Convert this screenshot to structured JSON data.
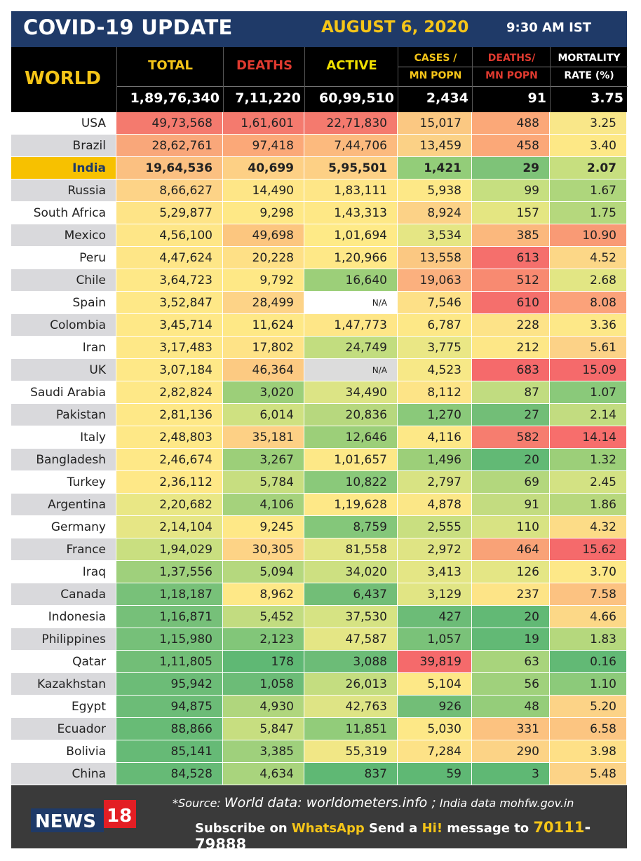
{
  "header": {
    "title": "COVID-19 UPDATE",
    "date": "AUGUST 6, 2020",
    "time": "9:30 AM IST"
  },
  "world": {
    "label": "WORLD",
    "columns": [
      {
        "line1": "TOTAL",
        "line2": "",
        "value": "1,89,76,340",
        "color": "#f5c518"
      },
      {
        "line1": "DEATHS",
        "line2": "",
        "value": "7,11,220",
        "color": "#e03a2f"
      },
      {
        "line1": "ACTIVE",
        "line2": "",
        "value": "60,99,510",
        "color": "#f0e000"
      },
      {
        "line1": "CASES /",
        "line2": "MN POPN",
        "value": "2,434",
        "color": "#f5c518"
      },
      {
        "line1": "DEATHS/",
        "line2": "MN POPN",
        "value": "91",
        "color": "#e03a2f"
      },
      {
        "line1": "MORTALITY",
        "line2": "RATE (%)",
        "value": "3.75",
        "color": "#ffffff"
      }
    ]
  },
  "rows": [
    {
      "country": "USA",
      "total": "49,73,568",
      "deaths": "1,61,601",
      "active": "22,71,830",
      "cpm": "15,017",
      "dpm": "488",
      "rate": "3.25",
      "colors": [
        "#f47a6e",
        "#f47a6e",
        "#f47a6e",
        "#fbc882",
        "#fba878",
        "#f9e789"
      ]
    },
    {
      "country": "Brazil",
      "total": "28,62,761",
      "deaths": "97,418",
      "active": "7,44,706",
      "cpm": "13,459",
      "dpm": "458",
      "rate": "3.40",
      "colors": [
        "#f9a77a",
        "#fba878",
        "#fcba7e",
        "#fbd186",
        "#fba878",
        "#fde886"
      ]
    },
    {
      "country": "India",
      "total": "19,64,536",
      "deaths": "40,699",
      "active": "5,95,501",
      "cpm": "1,421",
      "dpm": "29",
      "rate": "2.07",
      "highlight": true,
      "colors": [
        "#fbc081",
        "#fdd085",
        "#fdd085",
        "#93cd79",
        "#7ec378",
        "#c7df7f"
      ]
    },
    {
      "country": "Russia",
      "total": "8,66,627",
      "deaths": "14,490",
      "active": "1,83,111",
      "cpm": "5,938",
      "dpm": "99",
      "rate": "1.67",
      "colors": [
        "#fdd387",
        "#fee687",
        "#fee687",
        "#fde887",
        "#c6df80",
        "#aed67c"
      ]
    },
    {
      "country": "South Africa",
      "total": "5,29,877",
      "deaths": "9,298",
      "active": "1,43,313",
      "cpm": "8,924",
      "dpm": "157",
      "rate": "1.75",
      "colors": [
        "#fee487",
        "#fee886",
        "#fee886",
        "#fcd287",
        "#e4e682",
        "#b5d87d"
      ]
    },
    {
      "country": "Mexico",
      "total": "4,56,100",
      "deaths": "49,698",
      "active": "1,01,694",
      "cpm": "3,534",
      "dpm": "385",
      "rate": "10.90",
      "colors": [
        "#fee687",
        "#fcc67f",
        "#feea87",
        "#e5e684",
        "#fbb87d",
        "#f99a75"
      ]
    },
    {
      "country": "Peru",
      "total": "4,47,624",
      "deaths": "20,228",
      "active": "1,20,966",
      "cpm": "13,558",
      "dpm": "613",
      "rate": "4.52",
      "colors": [
        "#fee687",
        "#fee086",
        "#fee887",
        "#fbc882",
        "#f56f6c",
        "#fcd787"
      ]
    },
    {
      "country": "Chile",
      "total": "3,64,723",
      "deaths": "9,792",
      "active": "16,640",
      "cpm": "19,063",
      "dpm": "512",
      "rate": "2.68",
      "colors": [
        "#fee887",
        "#fee886",
        "#9ccf79",
        "#fbb07e",
        "#f88a71",
        "#e2e684"
      ]
    },
    {
      "country": "Spain",
      "total": "3,52,847",
      "deaths": "28,499",
      "active": "N/A",
      "cpm": "7,546",
      "dpm": "610",
      "rate": "8.08",
      "colors": [
        "#fee887",
        "#fdd387",
        "#ffffff",
        "#fde087",
        "#f56f6c",
        "#fba27a"
      ]
    },
    {
      "country": "Colombia",
      "total": "3,45,714",
      "deaths": "11,624",
      "active": "1,47,773",
      "cpm": "6,787",
      "dpm": "228",
      "rate": "3.36",
      "colors": [
        "#fee887",
        "#fee886",
        "#fee687",
        "#fde887",
        "#fde388",
        "#fde888"
      ]
    },
    {
      "country": "Iran",
      "total": "3,17,483",
      "deaths": "17,802",
      "active": "24,749",
      "cpm": "3,775",
      "dpm": "212",
      "rate": "5.61",
      "colors": [
        "#fee887",
        "#fee387",
        "#c2dd7f",
        "#eae785",
        "#fde787",
        "#fcd287"
      ]
    },
    {
      "country": "UK",
      "total": "3,07,184",
      "deaths": "46,364",
      "active": "N/A",
      "cpm": "4,523",
      "dpm": "683",
      "rate": "15.09",
      "colors": [
        "#fee887",
        "#fcca82",
        "#dcdcdc",
        "#f7e887",
        "#f56a6b",
        "#f56a6b"
      ]
    },
    {
      "country": "Saudi Arabia",
      "total": "2,82,824",
      "deaths": "3,020",
      "active": "34,490",
      "cpm": "8,112",
      "dpm": "87",
      "rate": "1.07",
      "colors": [
        "#fee887",
        "#9ccf79",
        "#dce485",
        "#fde487",
        "#c1dc80",
        "#8ac97a"
      ]
    },
    {
      "country": "Pakistan",
      "total": "2,81,136",
      "deaths": "6,014",
      "active": "20,836",
      "cpm": "1,270",
      "dpm": "27",
      "rate": "2.14",
      "colors": [
        "#fee887",
        "#cfe181",
        "#b7d87e",
        "#8ac97a",
        "#72be77",
        "#c2dc80"
      ]
    },
    {
      "country": "Italy",
      "total": "2,48,803",
      "deaths": "35,181",
      "active": "12,646",
      "cpm": "4,116",
      "dpm": "582",
      "rate": "14.14",
      "colors": [
        "#fee887",
        "#fdd085",
        "#9ccf79",
        "#fde887",
        "#f67d6f",
        "#f76e6c"
      ]
    },
    {
      "country": "Bangladesh",
      "total": "2,46,674",
      "deaths": "3,267",
      "active": "1,01,657",
      "cpm": "1,496",
      "dpm": "20",
      "rate": "1.32",
      "colors": [
        "#fee887",
        "#9ccf79",
        "#fde887",
        "#9ccf79",
        "#62b975",
        "#9ccf79"
      ]
    },
    {
      "country": "Turkey",
      "total": "2,36,112",
      "deaths": "5,784",
      "active": "10,822",
      "cpm": "2,797",
      "dpm": "69",
      "rate": "2.45",
      "colors": [
        "#fee887",
        "#c7de80",
        "#8ac97a",
        "#d8e383",
        "#b3d77d",
        "#d3e283"
      ]
    },
    {
      "country": "Argentina",
      "total": "2,20,682",
      "deaths": "4,106",
      "active": "1,19,628",
      "cpm": "4,878",
      "dpm": "91",
      "rate": "1.86",
      "colors": [
        "#e9e785",
        "#a5d27c",
        "#fee887",
        "#fbe787",
        "#c3dc80",
        "#b7d87d"
      ]
    },
    {
      "country": "Germany",
      "total": "2,14,104",
      "deaths": "9,245",
      "active": "8,759",
      "cpm": "2,555",
      "dpm": "110",
      "rate": "4.32",
      "colors": [
        "#e6e685",
        "#fee887",
        "#84c77a",
        "#c9df80",
        "#d8e383",
        "#fcdc87"
      ]
    },
    {
      "country": "France",
      "total": "1,94,029",
      "deaths": "30,305",
      "active": "81,558",
      "cpm": "2,972",
      "dpm": "464",
      "rate": "15.62",
      "colors": [
        "#c9df80",
        "#fdd386",
        "#e2e585",
        "#dfe484",
        "#f9a277",
        "#f56a6b"
      ]
    },
    {
      "country": "Iraq",
      "total": "1,37,556",
      "deaths": "5,094",
      "active": "34,020",
      "cpm": "3,413",
      "dpm": "126",
      "rate": "3.70",
      "colors": [
        "#9fd07c",
        "#b5d87e",
        "#cde081",
        "#e4e685",
        "#e4e685",
        "#fde888"
      ]
    },
    {
      "country": "Canada",
      "total": "1,18,187",
      "deaths": "8,962",
      "active": "6,437",
      "cpm": "3,129",
      "dpm": "237",
      "rate": "7.58",
      "colors": [
        "#78c179",
        "#fee887",
        "#72be77",
        "#e1e584",
        "#fde487",
        "#fcc281"
      ]
    },
    {
      "country": "Indonesia",
      "total": "1,16,871",
      "deaths": "5,452",
      "active": "37,530",
      "cpm": "427",
      "dpm": "20",
      "rate": "4.66",
      "colors": [
        "#76c079",
        "#c2dc80",
        "#d6e383",
        "#6cbc77",
        "#62b975",
        "#fcd887"
      ]
    },
    {
      "country": "Philippines",
      "total": "1,15,980",
      "deaths": "2,123",
      "active": "47,587",
      "cpm": "1,057",
      "dpm": "19",
      "rate": "1.83",
      "colors": [
        "#76c079",
        "#82c679",
        "#e4e685",
        "#7ac279",
        "#62b975",
        "#b5d87d"
      ]
    },
    {
      "country": "Qatar",
      "total": "1,11,805",
      "deaths": "178",
      "active": "3,088",
      "cpm": "39,819",
      "dpm": "63",
      "rate": "0.16",
      "colors": [
        "#72be77",
        "#5fb874",
        "#6cbc77",
        "#f56a6b",
        "#a8d47c",
        "#62b975"
      ]
    },
    {
      "country": "Kazakhstan",
      "total": "95,942",
      "deaths": "1,058",
      "active": "26,013",
      "cpm": "5,104",
      "dpm": "56",
      "rate": "1.10",
      "colors": [
        "#6cbc77",
        "#6cbc77",
        "#c4dd80",
        "#fde887",
        "#a0d17c",
        "#8cca7a"
      ]
    },
    {
      "country": "Egypt",
      "total": "94,875",
      "deaths": "4,930",
      "active": "42,763",
      "cpm": "926",
      "dpm": "48",
      "rate": "5.20",
      "colors": [
        "#6cbc77",
        "#b0d67d",
        "#dee485",
        "#72be77",
        "#95cd7a",
        "#fcd387"
      ]
    },
    {
      "country": "Ecuador",
      "total": "88,866",
      "deaths": "5,847",
      "active": "11,851",
      "cpm": "5,030",
      "dpm": "331",
      "rate": "6.58",
      "colors": [
        "#68bb76",
        "#c7de80",
        "#92cc7a",
        "#fde887",
        "#fcc280",
        "#fcc581"
      ]
    },
    {
      "country": "Bolivia",
      "total": "85,141",
      "deaths": "3,385",
      "active": "55,319",
      "cpm": "7,284",
      "dpm": "290",
      "rate": "3.98",
      "colors": [
        "#66ba76",
        "#9fd07c",
        "#f1e786",
        "#fde287",
        "#fcd386",
        "#fee087"
      ]
    },
    {
      "country": "China",
      "total": "84,528",
      "deaths": "4,634",
      "active": "837",
      "cpm": "59",
      "dpm": "3",
      "rate": "5.48",
      "colors": [
        "#66ba76",
        "#a9d47d",
        "#5fb874",
        "#5fb874",
        "#5fb874",
        "#fcd387"
      ]
    }
  ],
  "footer": {
    "logo_text": "NEWS",
    "logo_num": "18",
    "source_prefix": "*Source:",
    "source_world": "World data: worldometers.info ;",
    "source_india": "India data mohfw.gov.in",
    "subscribe_a": "Subscribe on ",
    "subscribe_b": "WhatsApp",
    "subscribe_c": " Send a ",
    "subscribe_d": "Hi!",
    "subscribe_e": " message to ",
    "subscribe_f": "70111",
    "subscribe_g": "-79888"
  }
}
